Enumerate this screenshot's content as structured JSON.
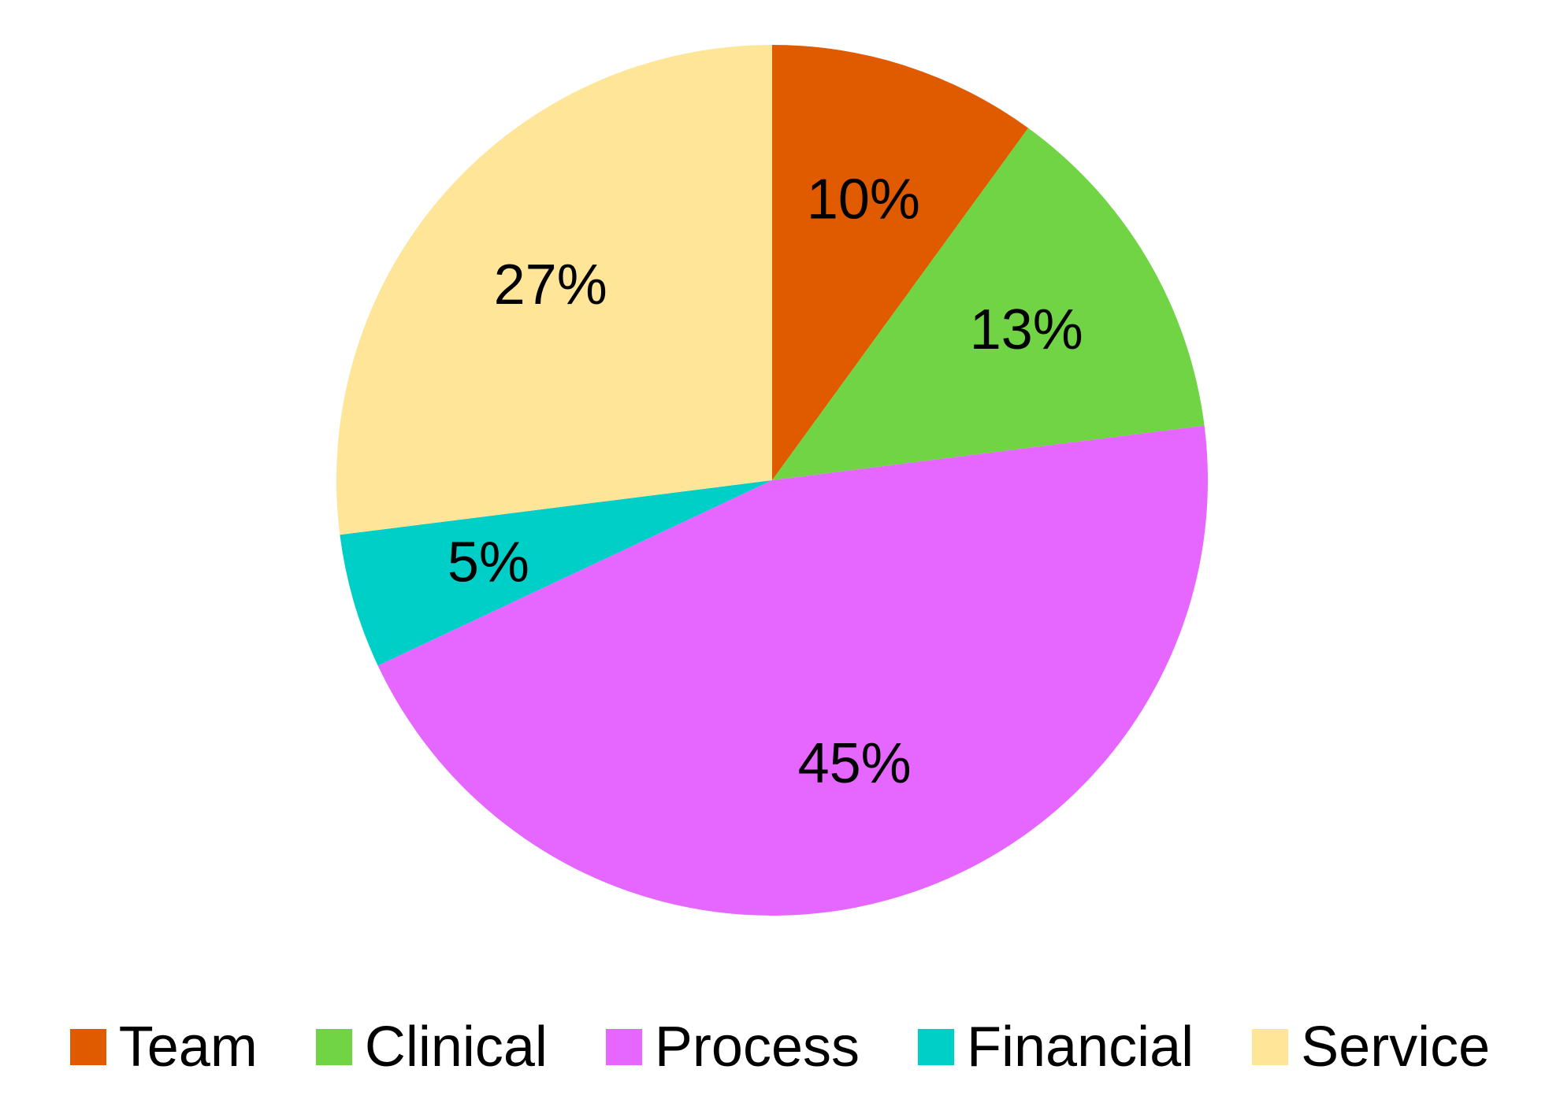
{
  "chart_data": {
    "type": "pie",
    "categories": [
      "Team",
      "Clinical",
      "Process",
      "Financial",
      "Service"
    ],
    "values": [
      10,
      13,
      45,
      5,
      27
    ],
    "labels": [
      "10%",
      "13%",
      "45%",
      "5%",
      "27%"
    ],
    "colors": [
      "#E05A00",
      "#70D445",
      "#E667FF",
      "#00CFC8",
      "#FEE598"
    ],
    "legend_position": "bottom",
    "start_angle": "12 o'clock",
    "direction": "clockwise"
  }
}
